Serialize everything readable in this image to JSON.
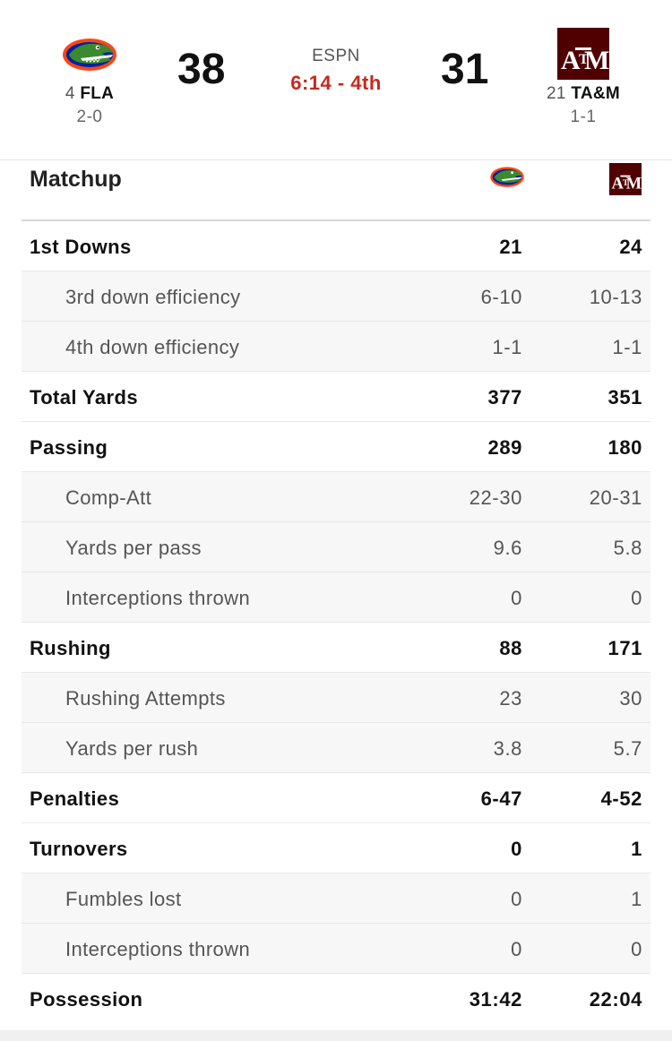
{
  "header": {
    "network": "ESPN",
    "clock": "6:14 - 4th",
    "away": {
      "rank": "4",
      "abbr": "FLA",
      "record": "2-0",
      "score": "38",
      "logo_icon": "florida-gators-logo"
    },
    "home": {
      "rank": "21",
      "abbr": "TA&M",
      "record": "1-1",
      "score": "31",
      "logo_icon": "texas-am-logo"
    }
  },
  "matchup": {
    "title": "Matchup",
    "rows": [
      {
        "label": "1st Downs",
        "away": "21",
        "home": "24"
      },
      {
        "label": "3rd down efficiency",
        "away": "6-10",
        "home": "10-13"
      },
      {
        "label": "4th down efficiency",
        "away": "1-1",
        "home": "1-1"
      },
      {
        "label": "Total Yards",
        "away": "377",
        "home": "351"
      },
      {
        "label": "Passing",
        "away": "289",
        "home": "180"
      },
      {
        "label": "Comp-Att",
        "away": "22-30",
        "home": "20-31"
      },
      {
        "label": "Yards per pass",
        "away": "9.6",
        "home": "5.8"
      },
      {
        "label": "Interceptions thrown",
        "away": "0",
        "home": "0"
      },
      {
        "label": "Rushing",
        "away": "88",
        "home": "171"
      },
      {
        "label": "Rushing Attempts",
        "away": "23",
        "home": "30"
      },
      {
        "label": "Yards per rush",
        "away": "3.8",
        "home": "5.7"
      },
      {
        "label": "Penalties",
        "away": "6-47",
        "home": "4-52"
      },
      {
        "label": "Turnovers",
        "away": "0",
        "home": "1"
      },
      {
        "label": "Fumbles lost",
        "away": "0",
        "home": "1"
      },
      {
        "label": "Interceptions thrown",
        "away": "0",
        "home": "0"
      },
      {
        "label": "Possession",
        "away": "31:42",
        "home": "22:04"
      }
    ]
  },
  "colors": {
    "clock": "#c8281e",
    "tamu_maroon": "#500000",
    "gator_orange": "#fa4616",
    "gator_blue": "#0021a5"
  }
}
